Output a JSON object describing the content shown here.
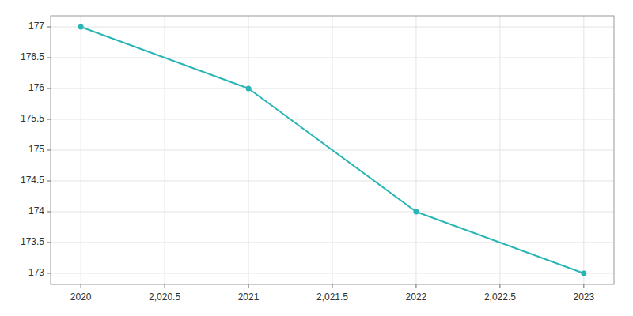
{
  "chart_data": {
    "type": "line",
    "x": [
      2020,
      2021,
      2022,
      2023
    ],
    "values": [
      177,
      176,
      174,
      173
    ],
    "color": "#2ab5b5",
    "marker": "circle",
    "xlim": [
      2019.82,
      2023.18
    ],
    "ylim": [
      172.82,
      177.18
    ],
    "xticks": [
      2020,
      {
        "value": 2020.5,
        "label": "2,020.5"
      },
      2021,
      {
        "value": 2021.5,
        "label": "2,021.5"
      },
      2022,
      {
        "value": 2022.5,
        "label": "2,022.5"
      },
      2023
    ],
    "yticks": [
      173,
      173.5,
      174,
      174.5,
      175,
      175.5,
      176,
      176.5,
      177
    ],
    "grid": true
  }
}
